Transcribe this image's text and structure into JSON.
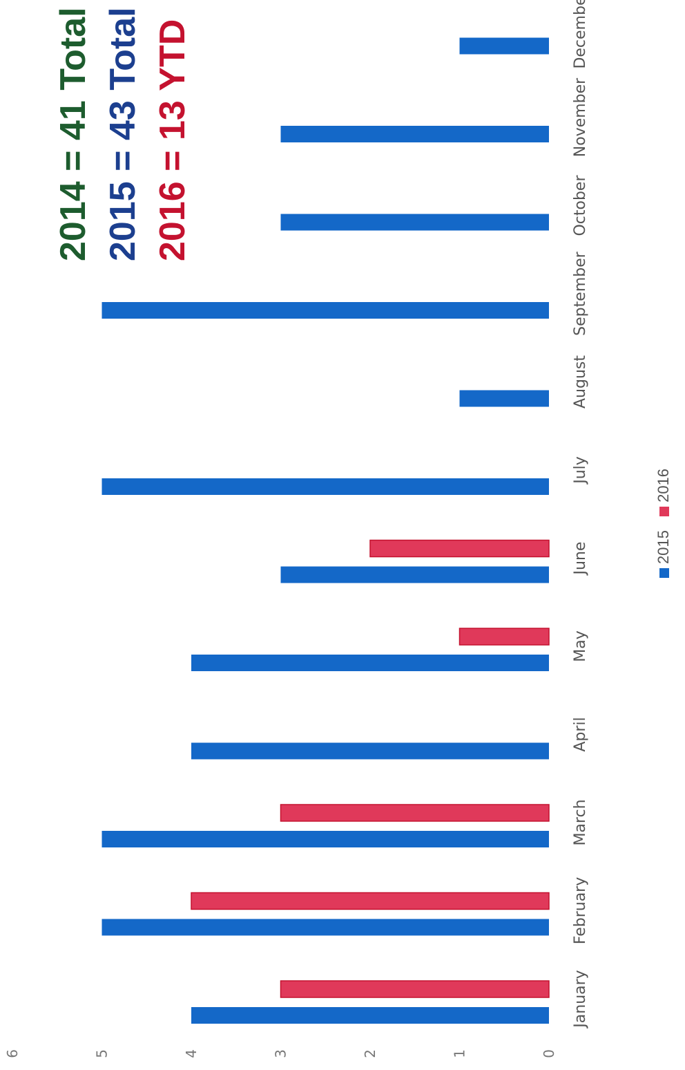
{
  "annotations": [
    {
      "text": "2014 = 41 Total",
      "color": "#1d5c2e"
    },
    {
      "text": "2015 = 43 Total",
      "color": "#1c3f8f"
    },
    {
      "text": "2016 = 13 YTD",
      "color": "#c4122f"
    }
  ],
  "chart_data": {
    "type": "bar",
    "categories": [
      "January",
      "February",
      "March",
      "April",
      "May",
      "June",
      "July",
      "August",
      "September",
      "October",
      "November",
      "December"
    ],
    "series": [
      {
        "name": "2015",
        "color": "#1468c8",
        "values": [
          4,
          5,
          5,
          4,
          4,
          3,
          5,
          1,
          5,
          3,
          3,
          1
        ]
      },
      {
        "name": "2016",
        "color": "#e0395a",
        "values": [
          3,
          4,
          3,
          null,
          1,
          2,
          null,
          null,
          null,
          null,
          null,
          null
        ]
      }
    ],
    "yticks": [
      0,
      1,
      2,
      3,
      4,
      5,
      6
    ],
    "ylim": [
      0,
      6
    ],
    "legend": "bottom"
  }
}
